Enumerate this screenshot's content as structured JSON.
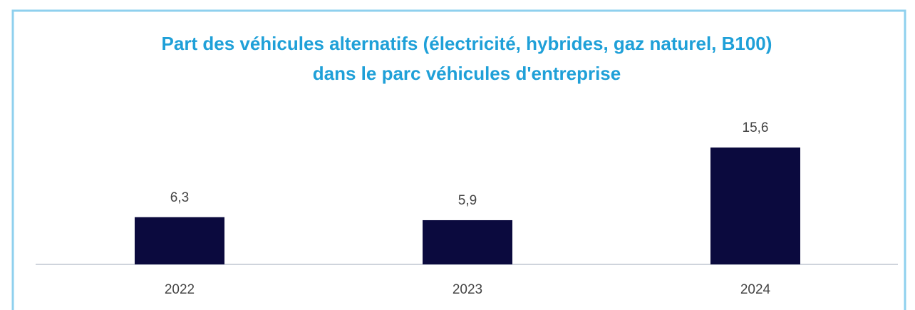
{
  "chart_data": {
    "type": "bar",
    "title": "Part des véhicules alternatifs (électricité, hybrides, gaz naturel, B100) dans le parc véhicules d'entreprise",
    "categories": [
      "2022",
      "2023",
      "2024"
    ],
    "values": [
      6.3,
      5.9,
      15.6
    ],
    "value_labels": [
      "6,3",
      "5,9",
      "15,6"
    ],
    "color": "#0b0a3e"
  }
}
